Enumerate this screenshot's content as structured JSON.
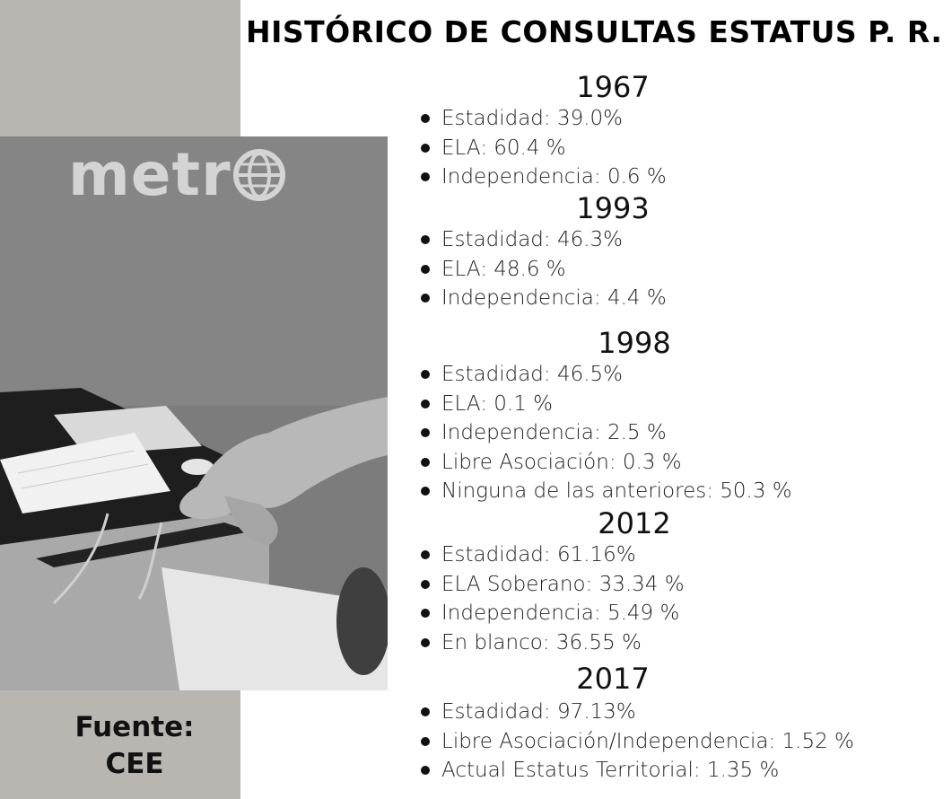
{
  "title": "HISTÓRICO DE CONSULTAS ESTATUS P. R.",
  "logo": "metr",
  "logo_icon": "globe-icon",
  "source": {
    "line1": "Fuente:",
    "line2": "CEE"
  },
  "consultas": [
    {
      "year": "1967",
      "items": [
        "Estadidad: 39.0%",
        "ELA: 60.4 %",
        "Independencia: 0.6 %"
      ]
    },
    {
      "year": "1993",
      "items": [
        "Estadidad: 46.3%",
        "ELA: 48.6 %",
        "Independencia: 4.4 %"
      ]
    },
    {
      "year": "1998",
      "items": [
        "Estadidad: 46.5%",
        "ELA: 0.1 %",
        "Independencia: 2.5 %",
        "Libre Asociación: 0.3 %",
        "Ninguna de las anteriores: 50.3 %"
      ]
    },
    {
      "year": "2012",
      "items": [
        "Estadidad: 61.16%",
        "ELA Soberano: 33.34 %",
        "Independencia: 5.49 %",
        "En blanco: 36.55 %"
      ]
    },
    {
      "year": "2017",
      "items": [
        "Estadidad: 97.13%",
        "Libre Asociación/Independencia: 1.52 %",
        "Actual Estatus Territorial: 1.35 %"
      ]
    }
  ]
}
